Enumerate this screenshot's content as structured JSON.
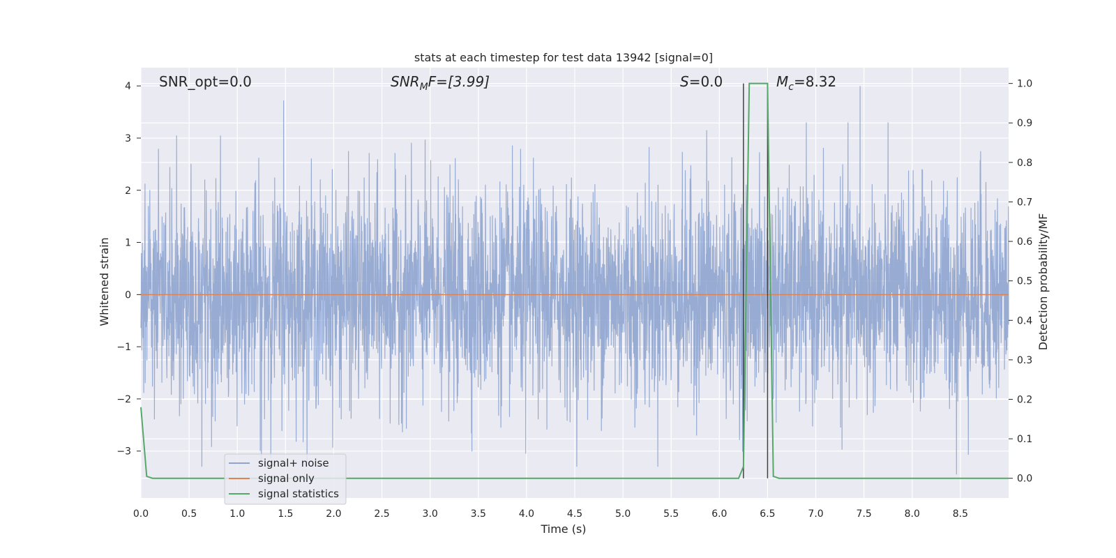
{
  "chart_data": {
    "type": "line",
    "title": "stats at each timestep for test data 13942 [signal=0]",
    "xlabel": "Time (s)",
    "ylabel": "Whitened strain",
    "ylabel_right": "Detection probability/MF",
    "xlim": [
      0.0,
      9.0
    ],
    "ylim": [
      -3.9,
      4.35
    ],
    "ylim_right": [
      -0.05,
      1.04
    ],
    "x_ticks": [
      "0.0",
      "0.5",
      "1.0",
      "1.5",
      "2.0",
      "2.5",
      "3.0",
      "3.5",
      "4.0",
      "4.5",
      "5.0",
      "5.5",
      "6.0",
      "6.5",
      "7.0",
      "7.5",
      "8.0",
      "8.5"
    ],
    "y_ticks": [
      "4",
      "3",
      "2",
      "1",
      "0",
      "−1",
      "−2",
      "−3"
    ],
    "y_ticks_right": [
      "1.0",
      "0.9",
      "0.8",
      "0.7",
      "0.6",
      "0.5",
      "0.4",
      "0.3",
      "0.2",
      "0.1",
      "0.0"
    ],
    "grid": true,
    "legend_position": "lower-left",
    "annotations": {
      "snr_opt": "SNR_opt=0.0",
      "snr_mf_main": "SNR",
      "snr_mf_sub": "M",
      "snr_mf_rest": "F=[3.99]",
      "s_main": "S",
      "s_rest": "=0.0",
      "mc_main": "M",
      "mc_sub": "c",
      "mc_rest": "=8.32"
    },
    "series": [
      {
        "name": "signal+ noise",
        "color": "#8fa5cf",
        "axis": "left",
        "description_values": "whitened noise, ~N(0,1), sampled densely from 0 to 9 s",
        "extremes": [
          [
            0.37,
            3.05
          ],
          [
            1.48,
            3.72
          ],
          [
            1.25,
            -3.3
          ],
          [
            3.99,
            -3.05
          ],
          [
            5.87,
            3.15
          ],
          [
            7.46,
            4.0
          ],
          [
            8.46,
            -3.45
          ],
          [
            8.71,
            2.75
          ]
        ]
      },
      {
        "name": "signal only",
        "color": "#dd8452",
        "axis": "left",
        "x": [
          0.0,
          9.0
        ],
        "y": [
          0.0,
          0.0
        ]
      },
      {
        "name": "signal statistics",
        "color": "#55a868",
        "axis": "right",
        "x": [
          0.0,
          0.06,
          0.12,
          6.2,
          6.25,
          6.31,
          6.5,
          6.56,
          6.62,
          9.0
        ],
        "y": [
          0.18,
          0.005,
          0.0,
          0.0,
          0.03,
          1.0,
          1.0,
          0.005,
          0.0,
          0.0
        ]
      }
    ],
    "vertical_lines": [
      6.25,
      6.5
    ]
  }
}
